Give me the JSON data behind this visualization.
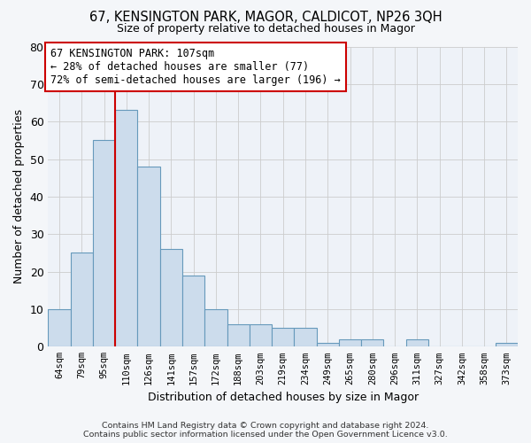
{
  "title_line1": "67, KENSINGTON PARK, MAGOR, CALDICOT, NP26 3QH",
  "title_line2": "Size of property relative to detached houses in Magor",
  "xlabel": "Distribution of detached houses by size in Magor",
  "ylabel": "Number of detached properties",
  "categories": [
    "64sqm",
    "79sqm",
    "95sqm",
    "110sqm",
    "126sqm",
    "141sqm",
    "157sqm",
    "172sqm",
    "188sqm",
    "203sqm",
    "219sqm",
    "234sqm",
    "249sqm",
    "265sqm",
    "280sqm",
    "296sqm",
    "311sqm",
    "327sqm",
    "342sqm",
    "358sqm",
    "373sqm"
  ],
  "values": [
    10,
    25,
    55,
    63,
    48,
    26,
    19,
    10,
    6,
    6,
    5,
    5,
    1,
    2,
    2,
    0,
    2,
    0,
    0,
    0,
    1
  ],
  "bar_color": "#ccdcec",
  "bar_edge_color": "#6699bb",
  "grid_color": "#cccccc",
  "annotation_box_color": "#cc0000",
  "property_line_color": "#cc0000",
  "property_bin_index": 3,
  "annotation_text_line1": "67 KENSINGTON PARK: 107sqm",
  "annotation_text_line2": "← 28% of detached houses are smaller (77)",
  "annotation_text_line3": "72% of semi-detached houses are larger (196) →",
  "ylim": [
    0,
    80
  ],
  "yticks": [
    0,
    10,
    20,
    30,
    40,
    50,
    60,
    70,
    80
  ],
  "footer_line1": "Contains HM Land Registry data © Crown copyright and database right 2024.",
  "footer_line2": "Contains public sector information licensed under the Open Government Licence v3.0.",
  "background_color": "#f4f6f9",
  "plot_bg_color": "#eef2f8"
}
